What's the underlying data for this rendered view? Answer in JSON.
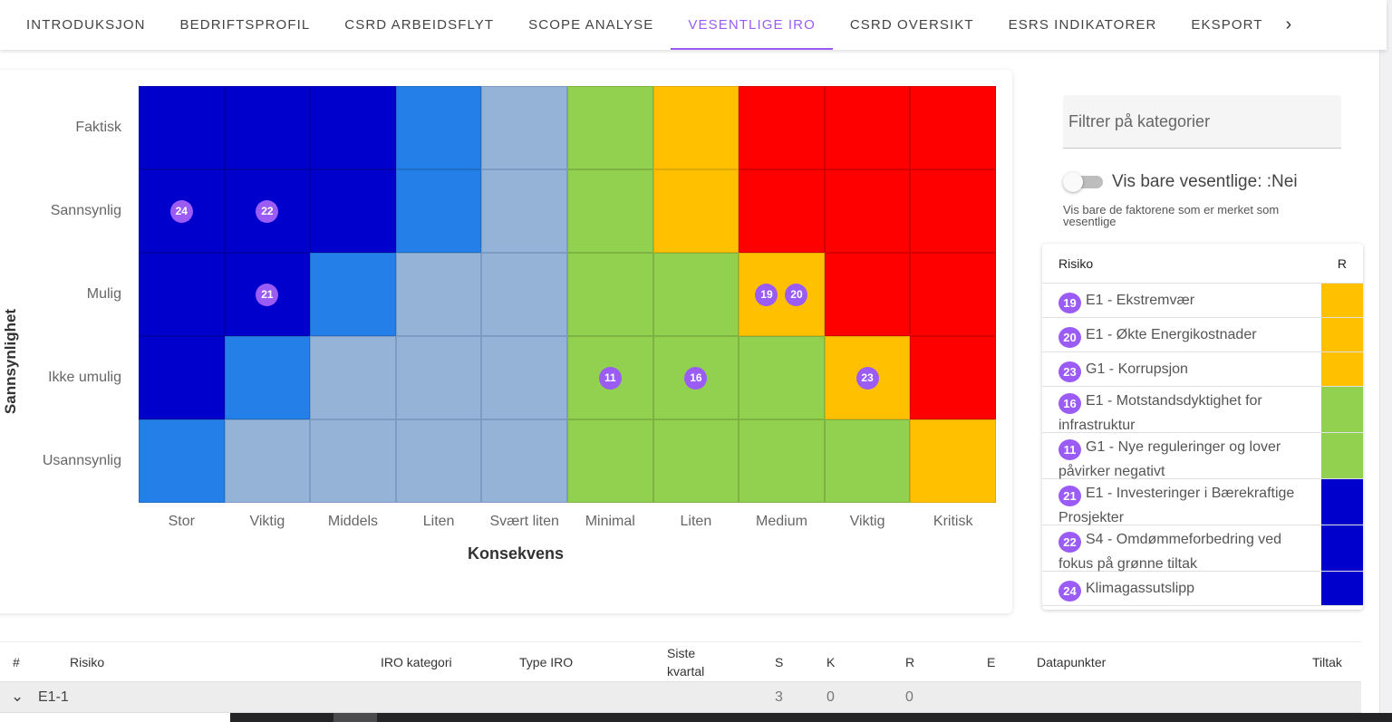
{
  "tabs": [
    {
      "label": "INTRODUKSJON",
      "active": false
    },
    {
      "label": "BEDRIFTSPROFIL",
      "active": false
    },
    {
      "label": "CSRD ARBEIDSFLYT",
      "active": false
    },
    {
      "label": "SCOPE ANALYSE",
      "active": false
    },
    {
      "label": "VESENTLIGE IRO",
      "active": true
    },
    {
      "label": "CSRD OVERSIKT",
      "active": false
    },
    {
      "label": "ESRS INDIKATORER",
      "active": false
    },
    {
      "label": "EKSPORT",
      "active": false
    }
  ],
  "tab_scroll_icon": "chevron-right",
  "colors": {
    "accent": "#9b5cf6",
    "dark_blue": "#0000cc",
    "mid_blue": "#2480e8",
    "light_blue": "#95b3d7",
    "green": "#92d050",
    "yellow": "#ffc000",
    "red": "#ff0000"
  },
  "matrix": {
    "y_title": "Sannsynlighet",
    "x_title": "Konsekvens",
    "y_labels": [
      "Faktisk",
      "Sannsynlig",
      "Mulig",
      "Ikke umulig",
      "Usannsynlig"
    ],
    "x_labels": [
      "Stor",
      "Viktig",
      "Middels",
      "Liten",
      "Svært liten",
      "Minimal",
      "Liten",
      "Medium",
      "Viktig",
      "Kritisk"
    ],
    "rows": [
      [
        "D",
        "D",
        "D",
        "M",
        "L",
        "G",
        "Y",
        "R",
        "R",
        "R"
      ],
      [
        "D",
        "D",
        "D",
        "M",
        "L",
        "G",
        "Y",
        "R",
        "R",
        "R"
      ],
      [
        "D",
        "D",
        "M",
        "L",
        "L",
        "G",
        "G",
        "Y",
        "R",
        "R"
      ],
      [
        "D",
        "M",
        "L",
        "L",
        "L",
        "G",
        "G",
        "G",
        "Y",
        "R"
      ],
      [
        "M",
        "L",
        "L",
        "L",
        "L",
        "G",
        "G",
        "G",
        "G",
        "Y"
      ]
    ],
    "markers": [
      {
        "row": 1,
        "col": 0,
        "ids": [
          "24"
        ]
      },
      {
        "row": 1,
        "col": 1,
        "ids": [
          "22"
        ]
      },
      {
        "row": 2,
        "col": 1,
        "ids": [
          "21"
        ]
      },
      {
        "row": 2,
        "col": 7,
        "ids": [
          "19",
          "20"
        ]
      },
      {
        "row": 3,
        "col": 5,
        "ids": [
          "11"
        ]
      },
      {
        "row": 3,
        "col": 6,
        "ids": [
          "16"
        ]
      },
      {
        "row": 3,
        "col": 8,
        "ids": [
          "23"
        ]
      }
    ]
  },
  "chart_data": {
    "type": "heatmap",
    "title": "",
    "xlabel": "Konsekvens",
    "ylabel": "Sannsynlighet",
    "x": [
      "Stor",
      "Viktig",
      "Middels",
      "Liten",
      "Svært liten",
      "Minimal",
      "Liten",
      "Medium",
      "Viktig",
      "Kritisk"
    ],
    "y": [
      "Faktisk",
      "Sannsynlig",
      "Mulig",
      "Ikke umulig",
      "Usannsynlig"
    ],
    "cell_colors": [
      [
        "dark_blue",
        "dark_blue",
        "dark_blue",
        "mid_blue",
        "light_blue",
        "green",
        "yellow",
        "red",
        "red",
        "red"
      ],
      [
        "dark_blue",
        "dark_blue",
        "dark_blue",
        "mid_blue",
        "light_blue",
        "green",
        "yellow",
        "red",
        "red",
        "red"
      ],
      [
        "dark_blue",
        "dark_blue",
        "mid_blue",
        "light_blue",
        "light_blue",
        "green",
        "green",
        "yellow",
        "red",
        "red"
      ],
      [
        "dark_blue",
        "mid_blue",
        "light_blue",
        "light_blue",
        "light_blue",
        "green",
        "green",
        "green",
        "yellow",
        "red"
      ],
      [
        "mid_blue",
        "light_blue",
        "light_blue",
        "light_blue",
        "light_blue",
        "green",
        "green",
        "green",
        "green",
        "yellow"
      ]
    ],
    "points": [
      {
        "id": 24,
        "x": "Stor",
        "y": "Sannsynlig"
      },
      {
        "id": 22,
        "x": "Viktig",
        "y": "Sannsynlig"
      },
      {
        "id": 21,
        "x": "Viktig",
        "y": "Mulig"
      },
      {
        "id": 19,
        "x": "Medium",
        "y": "Mulig"
      },
      {
        "id": 20,
        "x": "Medium",
        "y": "Mulig"
      },
      {
        "id": 11,
        "x": "Minimal",
        "y": "Ikke umulig"
      },
      {
        "id": 16,
        "x": "Liten",
        "y": "Ikke umulig"
      },
      {
        "id": 23,
        "x": "Viktig",
        "y": "Ikke umulig"
      }
    ],
    "grid": true,
    "legend": "none"
  },
  "filter": {
    "placeholder": "Filtrer på kategorier"
  },
  "toggle": {
    "label": "Vis bare vesentlige: :Nei",
    "checked": false,
    "helper": "Vis bare de faktorene som er merket som vesentlige"
  },
  "risk_list": {
    "header_risk": "Risiko",
    "header_r": "R",
    "items": [
      {
        "id": "19",
        "text": "E1 - Ekstremvær",
        "color": "#ffc000"
      },
      {
        "id": "20",
        "text": "E1 - Økte Energikostnader",
        "color": "#ffc000"
      },
      {
        "id": "23",
        "text": "G1 - Korrupsjon",
        "color": "#ffc000"
      },
      {
        "id": "16",
        "text": "E1 - Motstandsdyktighet for infrastruktur",
        "color": "#92d050"
      },
      {
        "id": "11",
        "text": "G1 - Nye reguleringer og lover påvirker negativt",
        "color": "#92d050"
      },
      {
        "id": "21",
        "text": "E1 - Investeringer i Bærekraftige Prosjekter",
        "color": "#0000cc"
      },
      {
        "id": "22",
        "text": "S4 - Omdømmeforbedring ved fokus på grønne tiltak",
        "color": "#0000cc"
      },
      {
        "id": "24",
        "text": "Klimagassutslipp",
        "color": "#0000cc"
      }
    ]
  },
  "table": {
    "headers": {
      "num": "#",
      "risiko": "Risiko",
      "iro_kategori": "IRO kategori",
      "type_iro": "Type IRO",
      "siste_kvartal_1": "Siste",
      "siste_kvartal_2": "kvartal",
      "s": "S",
      "k": "K",
      "r": "R",
      "e": "E",
      "datapunkter": "Datapunkter",
      "tiltak": "Tiltak"
    },
    "groups": [
      {
        "label": "E1-1",
        "s": "3",
        "k": "0",
        "r": "0",
        "expanded": true
      }
    ]
  }
}
